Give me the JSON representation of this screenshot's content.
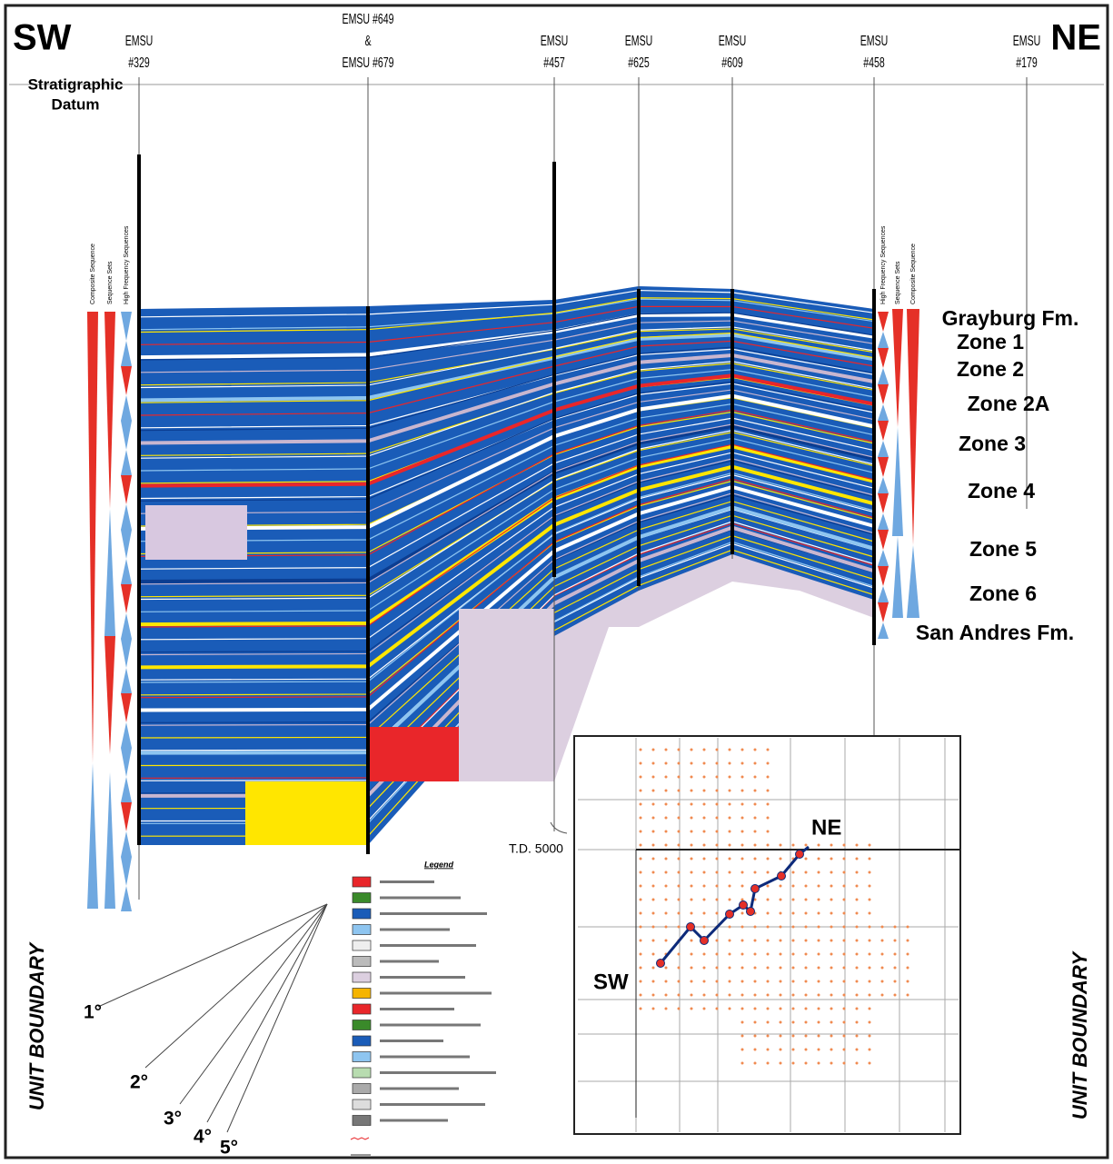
{
  "header": {
    "left": "SW",
    "right": "NE",
    "datum": [
      "Stratigraphic",
      "Datum"
    ]
  },
  "wells": [
    {
      "lines": [
        "EMSU",
        "#329"
      ]
    },
    {
      "lines": [
        "EMSU #649",
        "&",
        "EMSU #679"
      ]
    },
    {
      "lines": [
        "EMSU",
        "#457"
      ]
    },
    {
      "lines": [
        "EMSU",
        "#625"
      ]
    },
    {
      "lines": [
        "EMSU",
        "#609"
      ]
    },
    {
      "lines": [
        "EMSU",
        "#458"
      ]
    },
    {
      "lines": [
        "EMSU",
        "#179"
      ]
    }
  ],
  "columns": {
    "left": [
      "Composite Sequence",
      "Sequence Sets",
      "High Frequency Sequences"
    ],
    "right": [
      "High Frequency Sequences",
      "Sequence Sets",
      "Composite Sequence"
    ]
  },
  "zones": [
    "Grayburg Fm.",
    "Zone  1",
    "Zone  2",
    "Zone  2A",
    "Zone   3",
    "Zone  4",
    "Zone  5",
    "Zone  6",
    "San Andres Fm."
  ],
  "td": "T.D. 5000",
  "legend": {
    "title": "Legend"
  },
  "map": {
    "ne": "NE",
    "sw": "SW"
  },
  "unit_boundary": [
    "UNIT BOUNDARY",
    "UNIT BOUNDARY"
  ],
  "angles": [
    "1°",
    "2°",
    "3°",
    "4°",
    "5°"
  ]
}
